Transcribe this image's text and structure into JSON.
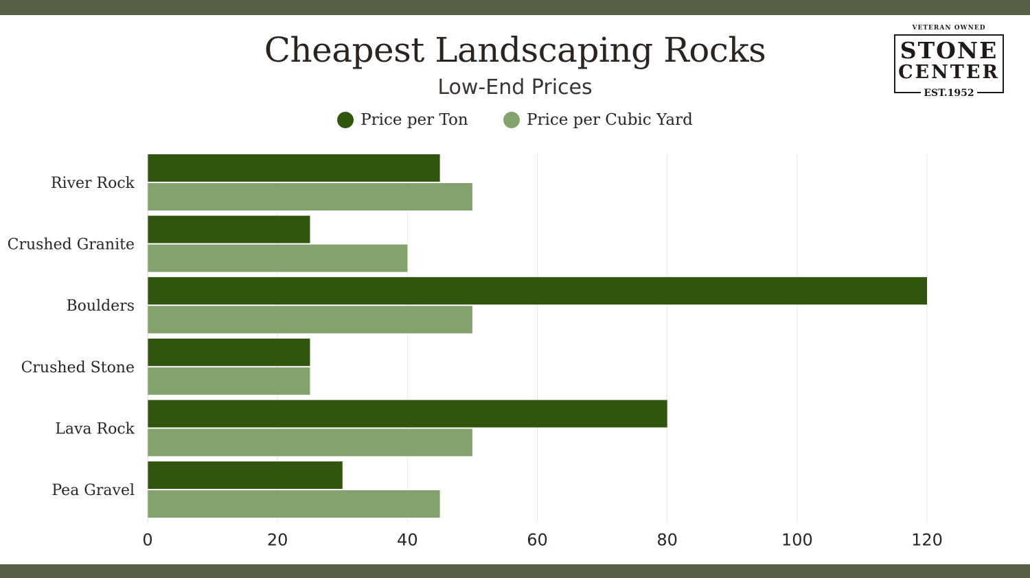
{
  "title": "Cheapest Landscaping Rocks",
  "subtitle": "Low-End Prices",
  "logo": {
    "top_text": "VETERAN OWNED",
    "line1": "STONE",
    "line2": "CENTER",
    "est": "EST.1952"
  },
  "colors": {
    "band": "#596049",
    "per_ton": "#31550f",
    "per_cubic_yard": "#84a26d"
  },
  "chart_data": {
    "type": "bar",
    "orientation": "horizontal",
    "categories": [
      "River Rock",
      "Crushed Granite",
      "Boulders",
      "Crushed Stone",
      "Lava Rock",
      "Pea Gravel"
    ],
    "series": [
      {
        "name": "Price per Ton",
        "color": "#31550f",
        "values": [
          45,
          25,
          120,
          25,
          80,
          30
        ]
      },
      {
        "name": "Price per Cubic Yard",
        "color": "#84a26d",
        "values": [
          50,
          40,
          50,
          25,
          50,
          45
        ]
      }
    ],
    "xlim": [
      0,
      120
    ],
    "xticks": [
      "0",
      "20",
      "40",
      "60",
      "80",
      "100",
      "120"
    ],
    "grid": true,
    "legend": "top-center"
  }
}
